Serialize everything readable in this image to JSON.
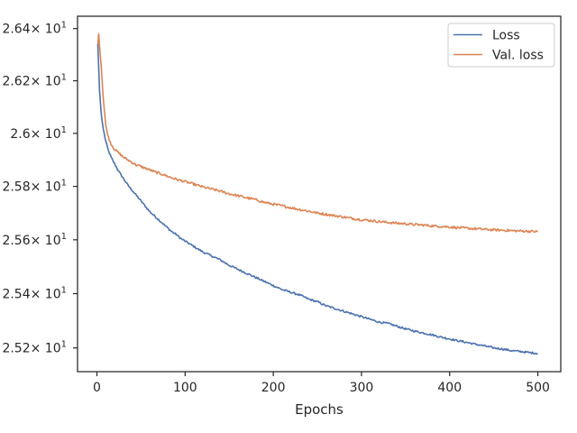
{
  "chart_data": {
    "type": "line",
    "title": "",
    "xlabel": "Epochs",
    "ylabel": "",
    "xlim": [
      -22,
      526
    ],
    "ylim": [
      25.113,
      26.4475
    ],
    "yscale": "log",
    "grid": false,
    "legend_position": "top-right",
    "x_ticks": [
      {
        "value": 0,
        "label": "0"
      },
      {
        "value": 100,
        "label": "100"
      },
      {
        "value": 200,
        "label": "200"
      },
      {
        "value": 300,
        "label": "300"
      },
      {
        "value": 400,
        "label": "400"
      },
      {
        "value": 500,
        "label": "500"
      }
    ],
    "y_ticks": [
      {
        "value": 25.2,
        "mantissa": "2.52",
        "exponent": "1"
      },
      {
        "value": 25.4,
        "mantissa": "2.54",
        "exponent": "1"
      },
      {
        "value": 25.6,
        "mantissa": "2.56",
        "exponent": "1"
      },
      {
        "value": 25.8,
        "mantissa": "2.58",
        "exponent": "1"
      },
      {
        "value": 26.0,
        "mantissa": "2.6",
        "exponent": "1"
      },
      {
        "value": 26.2,
        "mantissa": "2.62",
        "exponent": "1"
      },
      {
        "value": 26.4,
        "mantissa": "2.64",
        "exponent": "1"
      }
    ],
    "tick_multiplier": "× 10",
    "series": [
      {
        "name": "Loss",
        "color": "#4c72b0",
        "points": [
          [
            1,
            26.34
          ],
          [
            3,
            26.16
          ],
          [
            5,
            26.07
          ],
          [
            7,
            26.02
          ],
          [
            10,
            25.97
          ],
          [
            13,
            25.935
          ],
          [
            16,
            25.91
          ],
          [
            20,
            25.885
          ],
          [
            25,
            25.855
          ],
          [
            30,
            25.83
          ],
          [
            35,
            25.805
          ],
          [
            40,
            25.785
          ],
          [
            45,
            25.765
          ],
          [
            50,
            25.745
          ],
          [
            55,
            25.725
          ],
          [
            60,
            25.705
          ],
          [
            65,
            25.69
          ],
          [
            70,
            25.675
          ],
          [
            75,
            25.66
          ],
          [
            80,
            25.645
          ],
          [
            85,
            25.63
          ],
          [
            90,
            25.62
          ],
          [
            95,
            25.605
          ],
          [
            100,
            25.595
          ],
          [
            110,
            25.575
          ],
          [
            120,
            25.555
          ],
          [
            130,
            25.54
          ],
          [
            140,
            25.525
          ],
          [
            150,
            25.505
          ],
          [
            160,
            25.49
          ],
          [
            170,
            25.475
          ],
          [
            180,
            25.46
          ],
          [
            190,
            25.445
          ],
          [
            200,
            25.43
          ],
          [
            210,
            25.415
          ],
          [
            220,
            25.405
          ],
          [
            230,
            25.395
          ],
          [
            240,
            25.38
          ],
          [
            250,
            25.37
          ],
          [
            260,
            25.355
          ],
          [
            270,
            25.345
          ],
          [
            280,
            25.335
          ],
          [
            290,
            25.325
          ],
          [
            300,
            25.315
          ],
          [
            310,
            25.305
          ],
          [
            320,
            25.295
          ],
          [
            330,
            25.29
          ],
          [
            340,
            25.28
          ],
          [
            350,
            25.27
          ],
          [
            360,
            25.262
          ],
          [
            370,
            25.255
          ],
          [
            380,
            25.248
          ],
          [
            390,
            25.24
          ],
          [
            400,
            25.233
          ],
          [
            410,
            25.226
          ],
          [
            420,
            25.22
          ],
          [
            430,
            25.213
          ],
          [
            440,
            25.207
          ],
          [
            450,
            25.2
          ],
          [
            460,
            25.196
          ],
          [
            470,
            25.19
          ],
          [
            480,
            25.187
          ],
          [
            490,
            25.183
          ],
          [
            500,
            25.18
          ]
        ]
      },
      {
        "name": "Val. loss",
        "color": "#dd8452",
        "points": [
          [
            1,
            26.34
          ],
          [
            2,
            26.38
          ],
          [
            3,
            26.33
          ],
          [
            5,
            26.25
          ],
          [
            7,
            26.14
          ],
          [
            10,
            26.03
          ],
          [
            13,
            25.985
          ],
          [
            16,
            25.96
          ],
          [
            20,
            25.94
          ],
          [
            25,
            25.925
          ],
          [
            30,
            25.91
          ],
          [
            35,
            25.9
          ],
          [
            40,
            25.89
          ],
          [
            45,
            25.88
          ],
          [
            50,
            25.875
          ],
          [
            55,
            25.868
          ],
          [
            60,
            25.862
          ],
          [
            65,
            25.855
          ],
          [
            70,
            25.85
          ],
          [
            75,
            25.845
          ],
          [
            80,
            25.838
          ],
          [
            85,
            25.832
          ],
          [
            90,
            25.827
          ],
          [
            95,
            25.822
          ],
          [
            100,
            25.818
          ],
          [
            110,
            25.808
          ],
          [
            120,
            25.798
          ],
          [
            130,
            25.79
          ],
          [
            140,
            25.782
          ],
          [
            150,
            25.772
          ],
          [
            160,
            25.765
          ],
          [
            170,
            25.757
          ],
          [
            180,
            25.75
          ],
          [
            190,
            25.74
          ],
          [
            200,
            25.733
          ],
          [
            210,
            25.727
          ],
          [
            220,
            25.72
          ],
          [
            230,
            25.713
          ],
          [
            240,
            25.707
          ],
          [
            250,
            25.7
          ],
          [
            260,
            25.695
          ],
          [
            270,
            25.69
          ],
          [
            280,
            25.685
          ],
          [
            290,
            25.68
          ],
          [
            300,
            25.675
          ],
          [
            310,
            25.672
          ],
          [
            320,
            25.668
          ],
          [
            330,
            25.665
          ],
          [
            340,
            25.662
          ],
          [
            350,
            25.66
          ],
          [
            360,
            25.657
          ],
          [
            370,
            25.655
          ],
          [
            380,
            25.652
          ],
          [
            390,
            25.65
          ],
          [
            400,
            25.648
          ],
          [
            410,
            25.645
          ],
          [
            420,
            25.643
          ],
          [
            430,
            25.641
          ],
          [
            440,
            25.639
          ],
          [
            450,
            25.637
          ],
          [
            460,
            25.636
          ],
          [
            470,
            25.634
          ],
          [
            480,
            25.633
          ],
          [
            490,
            25.632
          ],
          [
            500,
            25.63
          ]
        ]
      }
    ]
  }
}
